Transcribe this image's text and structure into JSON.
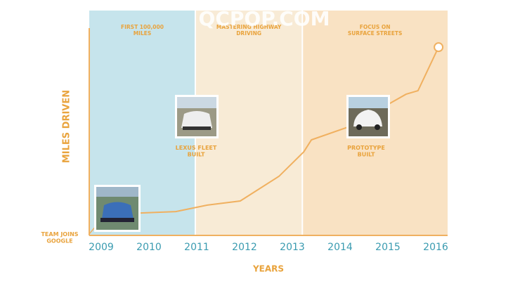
{
  "watermark": "QCPOP.COM",
  "chart_data": {
    "type": "line",
    "x_label": "YEARS",
    "y_label": "MILES DRIVEN",
    "xlim": [
      2008.75,
      2016.25
    ],
    "ylim": [
      0,
      100
    ],
    "xticks": [
      2009,
      2010,
      2011,
      2012,
      2013,
      2014,
      2015,
      2016
    ],
    "bands": [
      {
        "label": "FIRST 100,000 MILES",
        "start": 2008.75,
        "end": 2010.97,
        "color": "#c6e4ec"
      },
      {
        "label": "MASTERING HIGHWAY DRIVING",
        "start": 2010.97,
        "end": 2013.21,
        "color": "#f8ebd6"
      },
      {
        "label": "FOCUS ON SURFACE STREETS",
        "start": 2013.21,
        "end": 2016.25,
        "color": "#f9e2c3"
      }
    ],
    "annotations": [
      "TEAM JOINS GOOGLE",
      "LEXUS FLEET BUILT",
      "PROTOTYPE BUILT"
    ],
    "x": [
      2009.82,
      2010.56,
      2011.22,
      2011.91,
      2012.72,
      2013.24,
      2013.4,
      2014.16,
      2015.38,
      2015.63,
      2016.06
    ],
    "values": [
      10.8,
      11.5,
      14.6,
      16.6,
      28.5,
      40.3,
      46.1,
      52.2,
      68.1,
      69.8,
      90.8
    ],
    "color": "#f0b060"
  }
}
